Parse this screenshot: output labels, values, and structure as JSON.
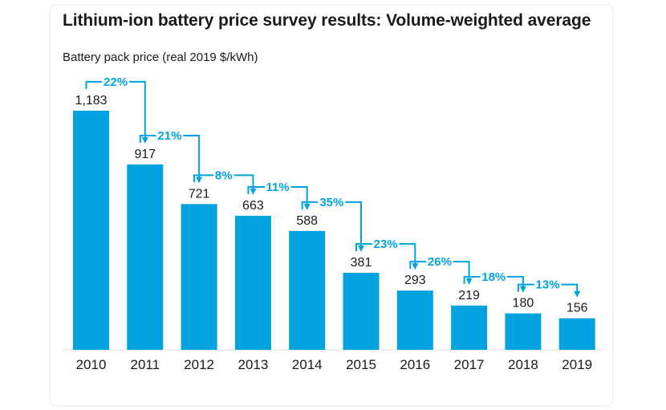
{
  "chart_data": {
    "type": "bar",
    "title": "Lithium-ion battery price survey results: Volume-weighted average",
    "ylabel": "Battery pack price (real 2019 $/kWh)",
    "xlabel": "",
    "categories": [
      "2010",
      "2011",
      "2012",
      "2013",
      "2014",
      "2015",
      "2016",
      "2017",
      "2018",
      "2019"
    ],
    "values": [
      1183,
      917,
      721,
      663,
      588,
      381,
      293,
      219,
      180,
      156
    ],
    "value_labels": [
      "1,183",
      "917",
      "721",
      "663",
      "588",
      "381",
      "293",
      "219",
      "180",
      "156"
    ],
    "ylim": [
      0,
      1270
    ],
    "grid": false,
    "annotations": [
      {
        "from": "2010",
        "to": "2011",
        "text": "22%"
      },
      {
        "from": "2011",
        "to": "2012",
        "text": "21%"
      },
      {
        "from": "2012",
        "to": "2013",
        "text": "8%"
      },
      {
        "from": "2013",
        "to": "2014",
        "text": "11%"
      },
      {
        "from": "2014",
        "to": "2015",
        "text": "35%"
      },
      {
        "from": "2015",
        "to": "2016",
        "text": "23%"
      },
      {
        "from": "2016",
        "to": "2017",
        "text": "26%"
      },
      {
        "from": "2017",
        "to": "2018",
        "text": "18%"
      },
      {
        "from": "2018",
        "to": "2019",
        "text": "13%"
      }
    ],
    "colors": {
      "bar": "#00a3e0",
      "annotation": "#00a3e0",
      "text": "#1a1a1a",
      "axis": "#dddddd"
    }
  }
}
